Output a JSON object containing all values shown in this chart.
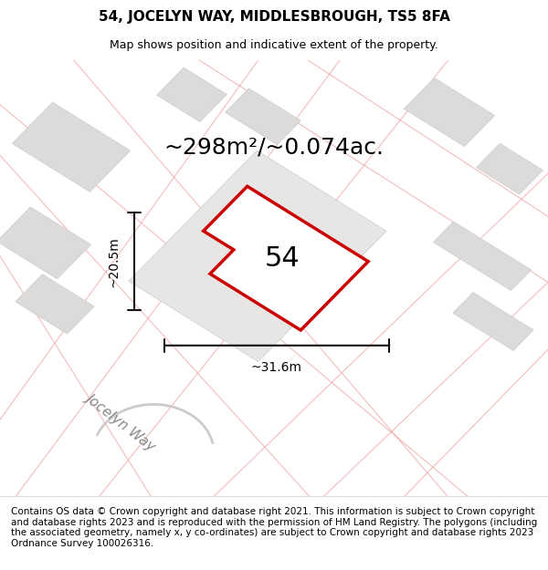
{
  "title": "54, JOCELYN WAY, MIDDLESBROUGH, TS5 8FA",
  "subtitle": "Map shows position and indicative extent of the property.",
  "area_text": "~298m²/~0.074ac.",
  "width_label": "~31.6m",
  "height_label": "~20.5m",
  "number_label": "54",
  "street_label": "Jocelyn Way",
  "footer": "Contains OS data © Crown copyright and database right 2021. This information is subject to Crown copyright and database rights 2023 and is reproduced with the permission of HM Land Registry. The polygons (including the associated geometry, namely x, y co-ordinates) are subject to Crown copyright and database rights 2023 Ordnance Survey 100026316.",
  "bg_color": "#f0eeee",
  "map_bg": "#f5f3f3",
  "building_fill": "#dddada",
  "building_edge": "#cccccc",
  "road_line_color": "#f0a0a0",
  "plot_outline_color": "#cc0000",
  "plot_fill": "#ffffff",
  "dim_line_color": "#111111",
  "title_fontsize": 11,
  "subtitle_fontsize": 9,
  "area_fontsize": 18,
  "label_fontsize": 10,
  "street_fontsize": 11,
  "footer_fontsize": 7.5
}
